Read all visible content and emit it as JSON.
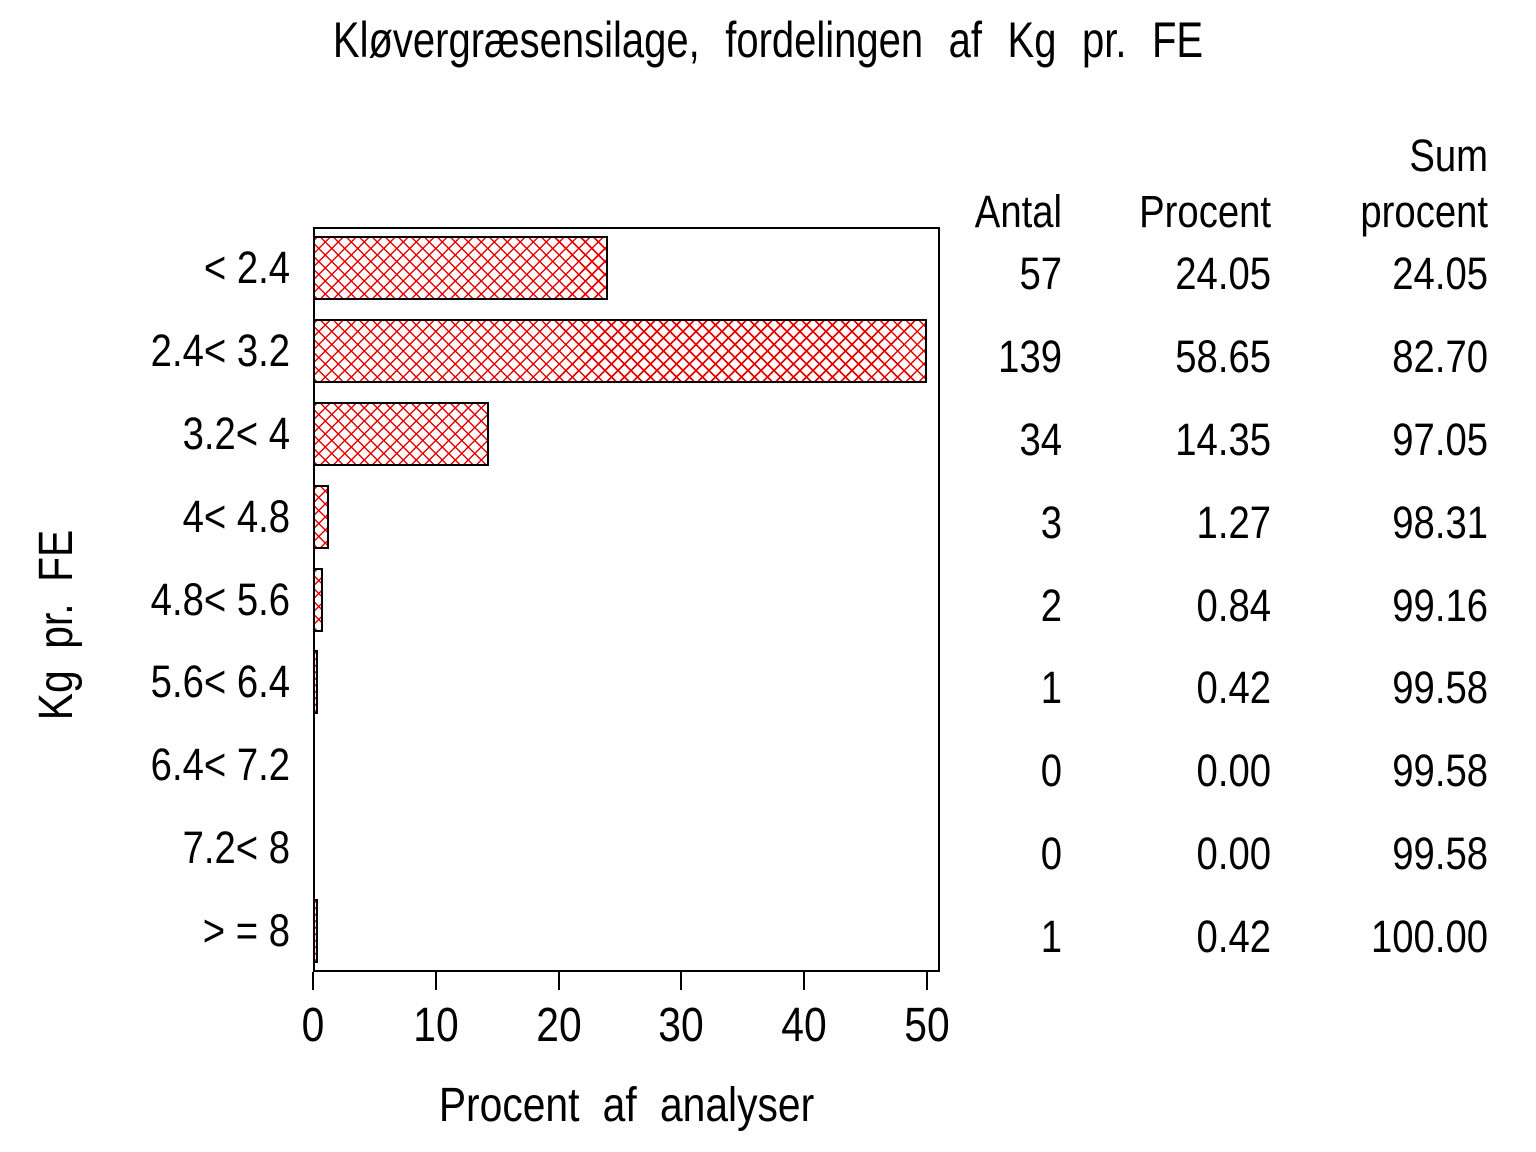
{
  "title": "Kløvergræsensilage, fordelingen af Kg pr. FE",
  "colors": {
    "hatch_red": "#e80000",
    "bar_border": "#000000",
    "axis": "#000000",
    "text": "#000000",
    "background": "#ffffff"
  },
  "chart_data": {
    "type": "bar",
    "orientation": "horizontal",
    "title": "Kløvergræsensilage, fordelingen af Kg pr. FE",
    "category_axis_label": "Kg pr. FE",
    "value_axis_label": "Procent af analyser",
    "categories": [
      "< 2.4",
      "2.4< 3.2",
      "3.2< 4",
      "4< 4.8",
      "4.8< 5.6",
      "5.6< 6.4",
      "6.4< 7.2",
      "7.2< 8",
      "> = 8"
    ],
    "values": [
      24.05,
      58.65,
      14.35,
      1.27,
      0.84,
      0.42,
      0,
      0,
      0.42
    ],
    "xlim": [
      0,
      50
    ],
    "xticks": [
      0,
      10,
      20,
      30,
      40,
      50
    ],
    "grid": false,
    "legend": false,
    "bar_fill_style": "red diagonal crosshatch on white, black outline",
    "bars_clipped_at_axis_max": true
  },
  "stats_table": {
    "header": {
      "antal": "Antal",
      "procent": "Procent",
      "sum_line1": "Sum",
      "sum_line2": "procent"
    },
    "rows": [
      {
        "antal": "57",
        "procent": "24.05",
        "sum": "24.05"
      },
      {
        "antal": "139",
        "procent": "58.65",
        "sum": "82.70"
      },
      {
        "antal": "34",
        "procent": "14.35",
        "sum": "97.05"
      },
      {
        "antal": "3",
        "procent": "1.27",
        "sum": "98.31"
      },
      {
        "antal": "2",
        "procent": "0.84",
        "sum": "99.16"
      },
      {
        "antal": "1",
        "procent": "0.42",
        "sum": "99.58"
      },
      {
        "antal": "0",
        "procent": "0.00",
        "sum": "99.58"
      },
      {
        "antal": "0",
        "procent": "0.00",
        "sum": "99.58"
      },
      {
        "antal": "1",
        "procent": "0.42",
        "sum": "100.00"
      }
    ]
  }
}
